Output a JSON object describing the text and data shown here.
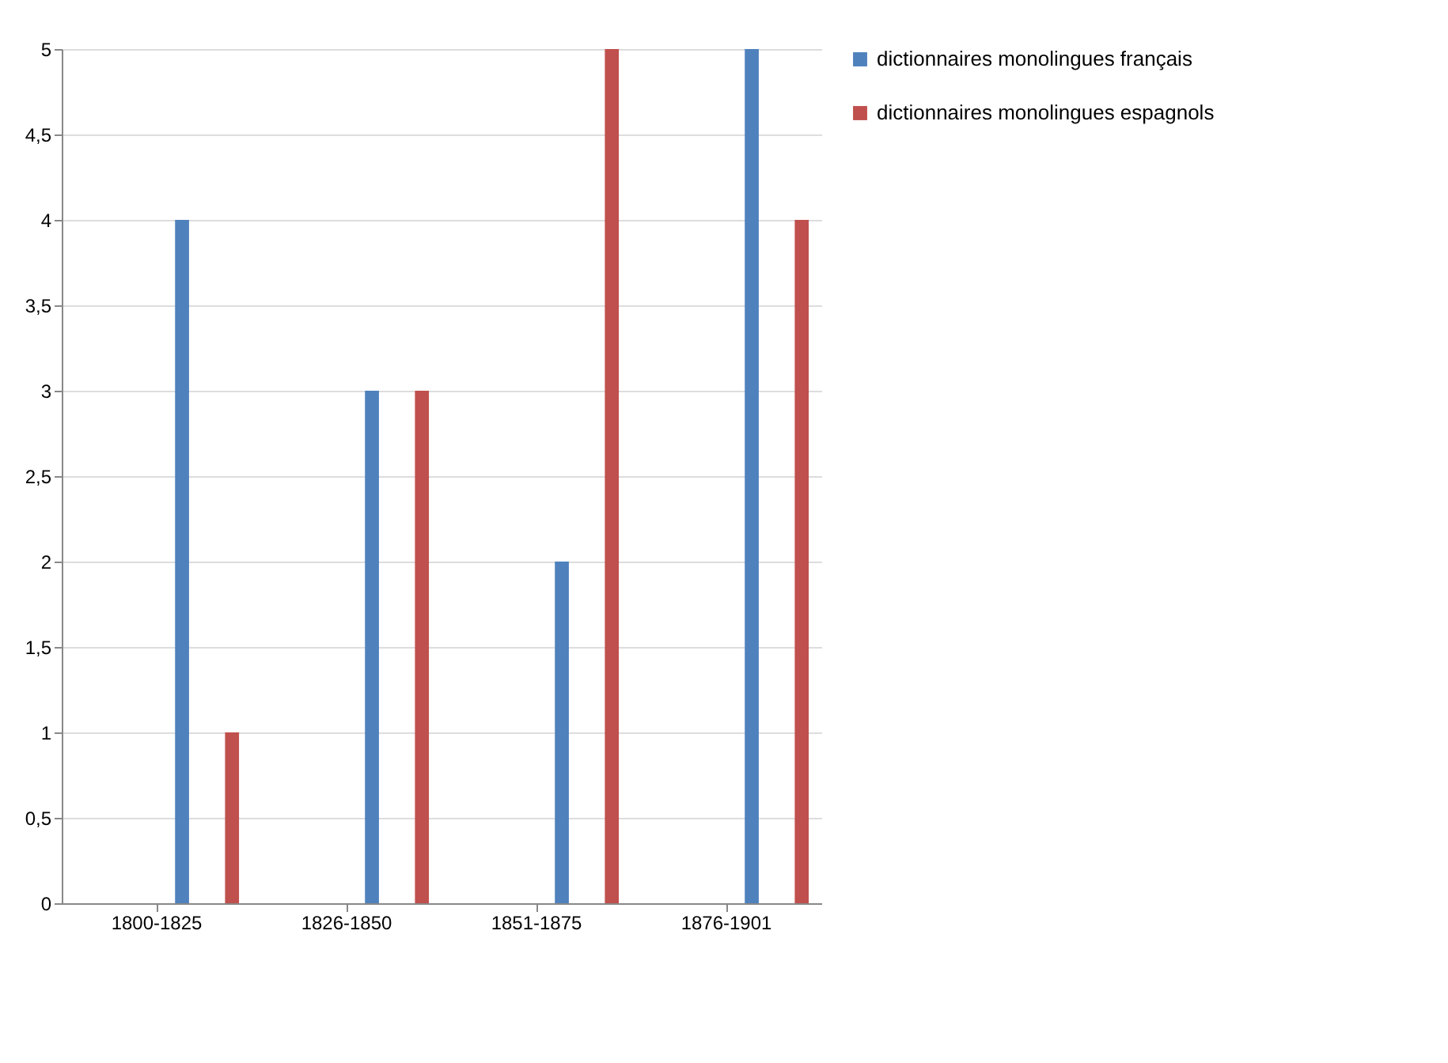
{
  "chart_data": {
    "type": "bar",
    "categories": [
      "1800-1825",
      "1826-1850",
      "1851-1875",
      "1876-1901"
    ],
    "series": [
      {
        "name": "dictionnaires monolingues français",
        "color": "#4f81bd",
        "values": [
          4,
          3,
          2,
          5
        ]
      },
      {
        "name": "dictionnaires monolingues espagnols",
        "color": "#c0504d",
        "values": [
          1,
          3,
          5,
          4
        ]
      }
    ],
    "ylim": [
      0,
      5
    ],
    "yticks": [
      0,
      {
        "value": 0.5,
        "label": "0,5"
      },
      1,
      {
        "value": 1.5,
        "label": "1,5"
      },
      2,
      {
        "value": 2.5,
        "label": "2,5"
      },
      3,
      {
        "value": 3.5,
        "label": "3,5"
      },
      4,
      {
        "value": 4.5,
        "label": "4,5"
      },
      5
    ],
    "grid": "y",
    "legend": "right"
  }
}
